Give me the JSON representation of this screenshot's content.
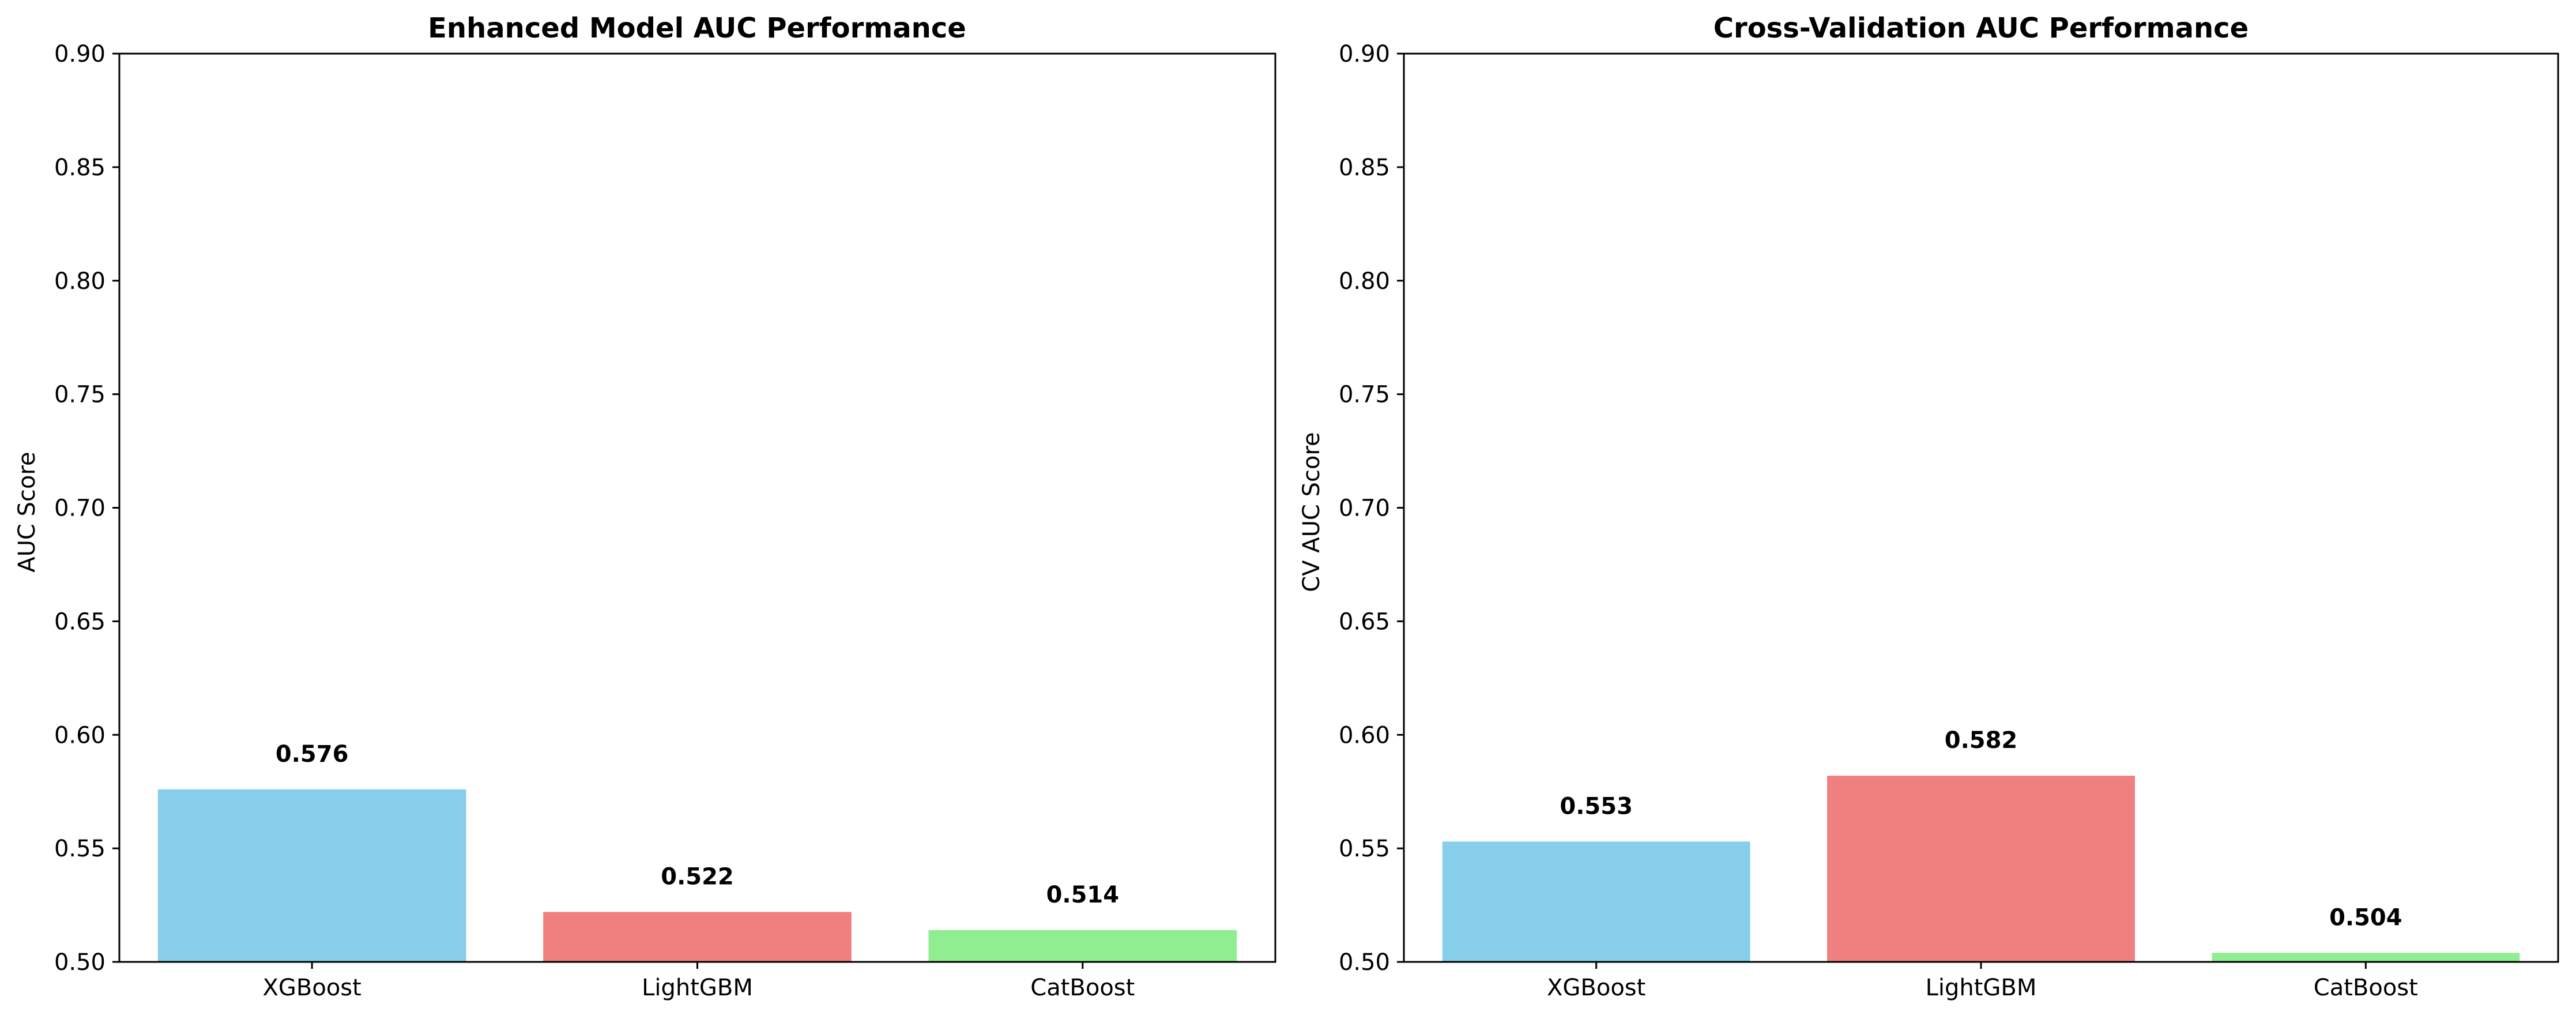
{
  "chart_data": [
    {
      "type": "bar",
      "title": "Enhanced Model AUC Performance",
      "xlabel": "",
      "ylabel": "AUC Score",
      "categories": [
        "XGBoost",
        "LightGBM",
        "CatBoost"
      ],
      "values": [
        0.576,
        0.522,
        0.514
      ],
      "value_labels": [
        "0.576",
        "0.522",
        "0.514"
      ],
      "colors": [
        "#87CEEB",
        "#F08080",
        "#90EE90"
      ],
      "ylim": [
        0.5,
        0.9
      ],
      "yticks": [
        0.5,
        0.55,
        0.6,
        0.65,
        0.7,
        0.75,
        0.8,
        0.85,
        0.9
      ],
      "ytick_labels": [
        "0.50",
        "0.55",
        "0.60",
        "0.65",
        "0.70",
        "0.75",
        "0.80",
        "0.85",
        "0.90"
      ],
      "grid": false,
      "legend": "none"
    },
    {
      "type": "bar",
      "title": "Cross-Validation AUC Performance",
      "xlabel": "",
      "ylabel": "CV AUC Score",
      "categories": [
        "XGBoost",
        "LightGBM",
        "CatBoost"
      ],
      "values": [
        0.553,
        0.582,
        0.504
      ],
      "value_labels": [
        "0.553",
        "0.582",
        "0.504"
      ],
      "colors": [
        "#87CEEB",
        "#F08080",
        "#90EE90"
      ],
      "ylim": [
        0.5,
        0.9
      ],
      "yticks": [
        0.5,
        0.55,
        0.6,
        0.65,
        0.7,
        0.75,
        0.8,
        0.85,
        0.9
      ],
      "ytick_labels": [
        "0.50",
        "0.55",
        "0.60",
        "0.65",
        "0.70",
        "0.75",
        "0.80",
        "0.85",
        "0.90"
      ],
      "grid": false,
      "legend": "none"
    }
  ]
}
